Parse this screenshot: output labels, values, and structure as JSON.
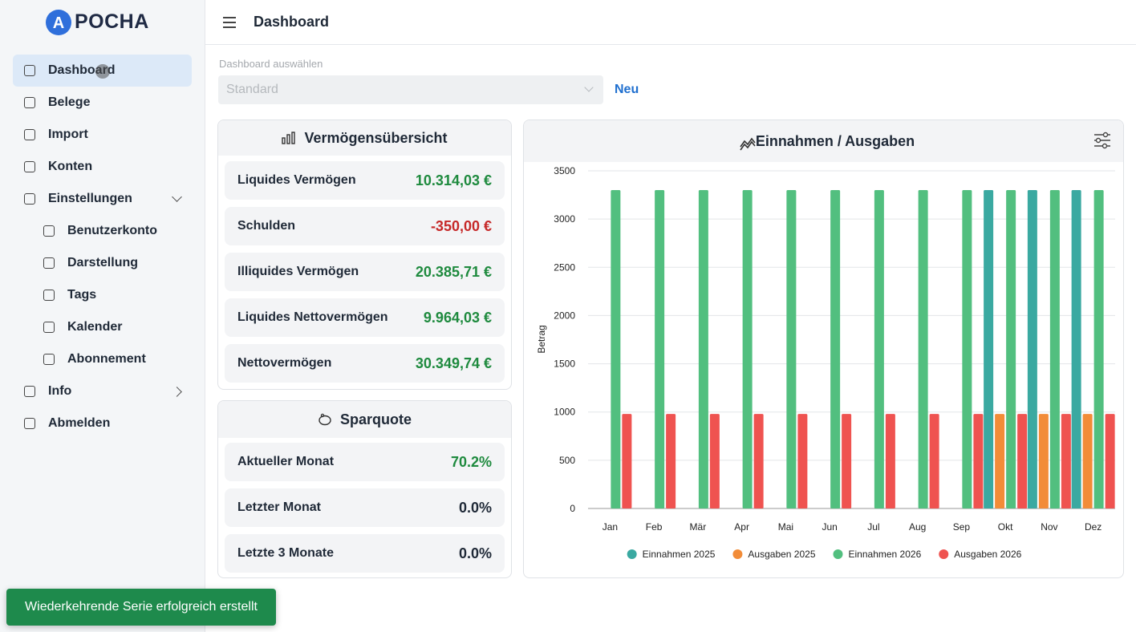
{
  "sidebar": {
    "logo_letter": "A",
    "brand": "POCHA",
    "nav": [
      {
        "label": "Dashboard"
      },
      {
        "label": "Belege"
      },
      {
        "label": "Import"
      },
      {
        "label": "Konten"
      },
      {
        "label": "Einstellungen",
        "expanded": true,
        "children": [
          {
            "label": "Benutzerkonto"
          },
          {
            "label": "Darstellung"
          },
          {
            "label": "Tags"
          },
          {
            "label": "Kalender"
          },
          {
            "label": "Abonnement"
          }
        ]
      },
      {
        "label": "Info",
        "expanded": false
      },
      {
        "label": "Abmelden"
      }
    ]
  },
  "header": {
    "title": "Dashboard"
  },
  "selector": {
    "label": "Dashboard auswählen",
    "value": "Standard",
    "new_button": "Neu"
  },
  "cards": [
    {
      "title": "Vermögensübersicht",
      "rows": [
        {
          "label": "Liquides Vermögen",
          "value": "10.314,03 €",
          "color": "#1e8a3e"
        },
        {
          "label": "Schulden",
          "value": "-350,00 €",
          "color": "#c62828"
        },
        {
          "label": "Illiquides Vermögen",
          "value": "20.385,71 €",
          "color": "#1e8a3e"
        },
        {
          "label": "Liquides Nettovermögen",
          "value": "9.964,03 €",
          "color": "#1e8a3e"
        },
        {
          "label": "Nettovermögen",
          "value": "30.349,74 €",
          "color": "#1e8a3e"
        }
      ]
    },
    {
      "title": "Sparquote",
      "rows": [
        {
          "label": "Aktueller Monat",
          "value": "70.2%",
          "color": "#1e8a3e"
        },
        {
          "label": "Letzter Monat",
          "value": "0.0%",
          "color": "#1f2937"
        },
        {
          "label": "Letzte 3 Monate",
          "value": "0.0%",
          "color": "#1f2937"
        }
      ]
    }
  ],
  "chart_data": {
    "type": "bar",
    "title": "Einnahmen / Ausgaben",
    "y_label": "Betrag",
    "categories": [
      "Jan",
      "Feb",
      "Mär",
      "Apr",
      "Mai",
      "Jun",
      "Jul",
      "Aug",
      "Sep",
      "Okt",
      "Nov",
      "Dez"
    ],
    "series": [
      {
        "name": "Einnahmen 2025",
        "color": "#3aa9a1",
        "values": [
          null,
          null,
          null,
          null,
          null,
          null,
          null,
          null,
          null,
          3300,
          3300,
          3300
        ]
      },
      {
        "name": "Ausgaben 2025",
        "color": "#f28c38",
        "values": [
          null,
          null,
          null,
          null,
          null,
          null,
          null,
          null,
          null,
          980,
          980,
          980
        ]
      },
      {
        "name": "Einnahmen 2026",
        "color": "#52bf7f",
        "values": [
          3300,
          3300,
          3300,
          3300,
          3300,
          3300,
          3300,
          3300,
          3300,
          3300,
          3300,
          3300
        ]
      },
      {
        "name": "Ausgaben 2026",
        "color": "#ef5350",
        "values": [
          980,
          980,
          980,
          980,
          980,
          980,
          980,
          980,
          980,
          980,
          980,
          980
        ]
      }
    ],
    "ylim": [
      0,
      3500
    ],
    "yticks": [
      0,
      500,
      1000,
      1500,
      2000,
      2500,
      3000,
      3500
    ],
    "grid": true,
    "legend": "bottom"
  },
  "toast": {
    "message": "Wiederkehrende Serie erfolgreich erstellt"
  }
}
